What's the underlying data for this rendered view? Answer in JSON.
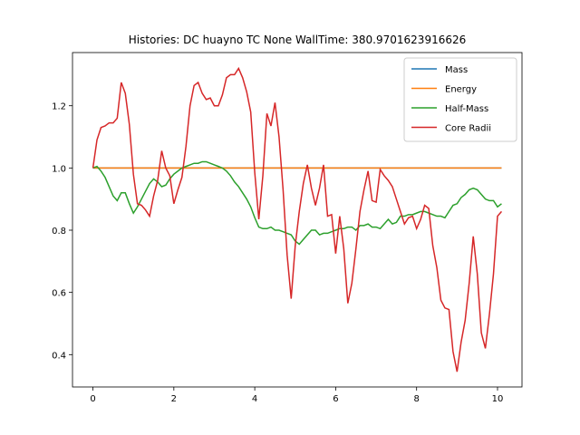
{
  "chart_data": {
    "type": "line",
    "title": "Histories: DC huayno TC None WallTime: 380.9701623916626",
    "x": [
      0,
      0.1,
      0.2,
      0.3,
      0.4,
      0.5,
      0.6,
      0.7,
      0.8,
      0.9,
      1,
      1.1,
      1.2,
      1.3,
      1.4,
      1.5,
      1.6,
      1.7,
      1.8,
      1.9,
      2,
      2.1,
      2.2,
      2.3,
      2.4,
      2.5,
      2.6,
      2.7,
      2.8,
      2.9,
      3,
      3.1,
      3.2,
      3.3,
      3.4,
      3.5,
      3.6,
      3.7,
      3.8,
      3.9,
      4,
      4.1,
      4.2,
      4.3,
      4.4,
      4.5,
      4.6,
      4.7,
      4.8,
      4.9,
      5,
      5.1,
      5.2,
      5.3,
      5.4,
      5.5,
      5.6,
      5.7,
      5.8,
      5.9,
      6,
      6.1,
      6.2,
      6.3,
      6.4,
      6.5,
      6.6,
      6.7,
      6.8,
      6.9,
      7,
      7.1,
      7.2,
      7.3,
      7.4,
      7.5,
      7.6,
      7.7,
      7.8,
      7.9,
      8,
      8.1,
      8.2,
      8.3,
      8.4,
      8.5,
      8.6,
      8.7,
      8.8,
      8.9,
      9,
      9.1,
      9.2,
      9.3,
      9.4,
      9.5,
      9.6,
      9.7,
      9.8,
      9.9,
      10,
      10.1
    ],
    "series": [
      {
        "name": "Mass",
        "color": "#1f77b4",
        "values": [
          1,
          1,
          1,
          1,
          1,
          1,
          1,
          1,
          1,
          1,
          1,
          1,
          1,
          1,
          1,
          1,
          1,
          1,
          1,
          1,
          1,
          1,
          1,
          1,
          1,
          1,
          1,
          1,
          1,
          1,
          1,
          1,
          1,
          1,
          1,
          1,
          1,
          1,
          1,
          1,
          1,
          1,
          1,
          1,
          1,
          1,
          1,
          1,
          1,
          1,
          1,
          1,
          1,
          1,
          1,
          1,
          1,
          1,
          1,
          1,
          1,
          1,
          1,
          1,
          1,
          1,
          1,
          1,
          1,
          1,
          1,
          1,
          1,
          1,
          1,
          1,
          1,
          1,
          1,
          1,
          1,
          1,
          1,
          1,
          1,
          1,
          1,
          1,
          1,
          1,
          1,
          1,
          1,
          1,
          1,
          1,
          1,
          1,
          1,
          1,
          1,
          1
        ]
      },
      {
        "name": "Energy",
        "color": "#ff7f0e",
        "values": [
          1,
          1,
          1,
          1,
          1,
          1,
          1,
          1,
          1,
          1,
          1,
          1,
          1,
          1,
          1,
          1,
          1,
          1,
          1,
          1,
          1,
          1,
          1,
          1,
          1,
          1,
          1,
          1,
          1,
          1,
          1,
          1,
          1,
          1,
          1,
          1,
          1,
          1,
          1,
          1,
          1,
          1,
          1,
          1,
          1,
          1,
          1,
          1,
          1,
          1,
          1,
          1,
          1,
          1,
          1,
          1,
          1,
          1,
          1,
          1,
          1,
          1,
          1,
          1,
          1,
          1,
          1,
          1,
          1,
          1,
          1,
          1,
          1,
          1,
          1,
          1,
          1,
          1,
          1,
          1,
          1,
          1,
          1,
          1,
          1,
          1,
          1,
          1,
          1,
          1,
          1,
          1,
          1,
          1,
          1,
          1,
          1,
          1,
          1,
          1,
          1,
          1
        ]
      },
      {
        "name": "Half-Mass",
        "color": "#2ca02c",
        "values": [
          1.0,
          1.005,
          0.99,
          0.97,
          0.94,
          0.91,
          0.895,
          0.92,
          0.92,
          0.885,
          0.855,
          0.875,
          0.9,
          0.925,
          0.95,
          0.965,
          0.955,
          0.94,
          0.945,
          0.965,
          0.98,
          0.99,
          1.0,
          1.005,
          1.01,
          1.015,
          1.015,
          1.02,
          1.02,
          1.015,
          1.01,
          1.005,
          1.0,
          0.99,
          0.975,
          0.955,
          0.94,
          0.92,
          0.9,
          0.875,
          0.84,
          0.81,
          0.805,
          0.805,
          0.81,
          0.8,
          0.8,
          0.795,
          0.79,
          0.785,
          0.765,
          0.755,
          0.77,
          0.785,
          0.8,
          0.8,
          0.785,
          0.79,
          0.79,
          0.795,
          0.8,
          0.805,
          0.805,
          0.81,
          0.81,
          0.8,
          0.815,
          0.815,
          0.82,
          0.81,
          0.81,
          0.805,
          0.82,
          0.835,
          0.82,
          0.825,
          0.845,
          0.845,
          0.85,
          0.85,
          0.855,
          0.86,
          0.86,
          0.855,
          0.85,
          0.845,
          0.845,
          0.84,
          0.86,
          0.88,
          0.885,
          0.905,
          0.915,
          0.93,
          0.935,
          0.93,
          0.915,
          0.9,
          0.895,
          0.895,
          0.875,
          0.885
        ]
      },
      {
        "name": "Core Radii",
        "color": "#d62728",
        "values": [
          1.0,
          1.09,
          1.13,
          1.135,
          1.145,
          1.145,
          1.16,
          1.275,
          1.24,
          1.14,
          0.98,
          0.885,
          0.88,
          0.865,
          0.845,
          0.91,
          0.96,
          1.055,
          1.0,
          0.975,
          0.885,
          0.93,
          0.97,
          1.07,
          1.2,
          1.265,
          1.275,
          1.24,
          1.22,
          1.225,
          1.2,
          1.2,
          1.235,
          1.29,
          1.3,
          1.3,
          1.32,
          1.29,
          1.245,
          1.18,
          0.985,
          0.835,
          0.975,
          1.175,
          1.135,
          1.21,
          1.1,
          0.93,
          0.72,
          0.58,
          0.75,
          0.86,
          0.95,
          1.01,
          0.935,
          0.88,
          0.935,
          1.01,
          0.845,
          0.85,
          0.725,
          0.845,
          0.74,
          0.565,
          0.63,
          0.74,
          0.86,
          0.93,
          0.99,
          0.895,
          0.89,
          0.995,
          0.975,
          0.96,
          0.94,
          0.9,
          0.86,
          0.82,
          0.84,
          0.845,
          0.805,
          0.835,
          0.88,
          0.87,
          0.75,
          0.68,
          0.575,
          0.55,
          0.545,
          0.41,
          0.345,
          0.44,
          0.51,
          0.63,
          0.78,
          0.66,
          0.47,
          0.42,
          0.53,
          0.66,
          0.845,
          0.86
        ]
      }
    ],
    "xlim": [
      -0.505,
      10.605
    ],
    "ylim": [
      0.296,
      1.371
    ],
    "xticks": [
      0,
      2,
      4,
      6,
      8,
      10
    ],
    "yticks": [
      0.4,
      0.6,
      0.8,
      {
        "value": 1,
        "label": "1.0"
      },
      1.2
    ],
    "legend": "upper right"
  }
}
